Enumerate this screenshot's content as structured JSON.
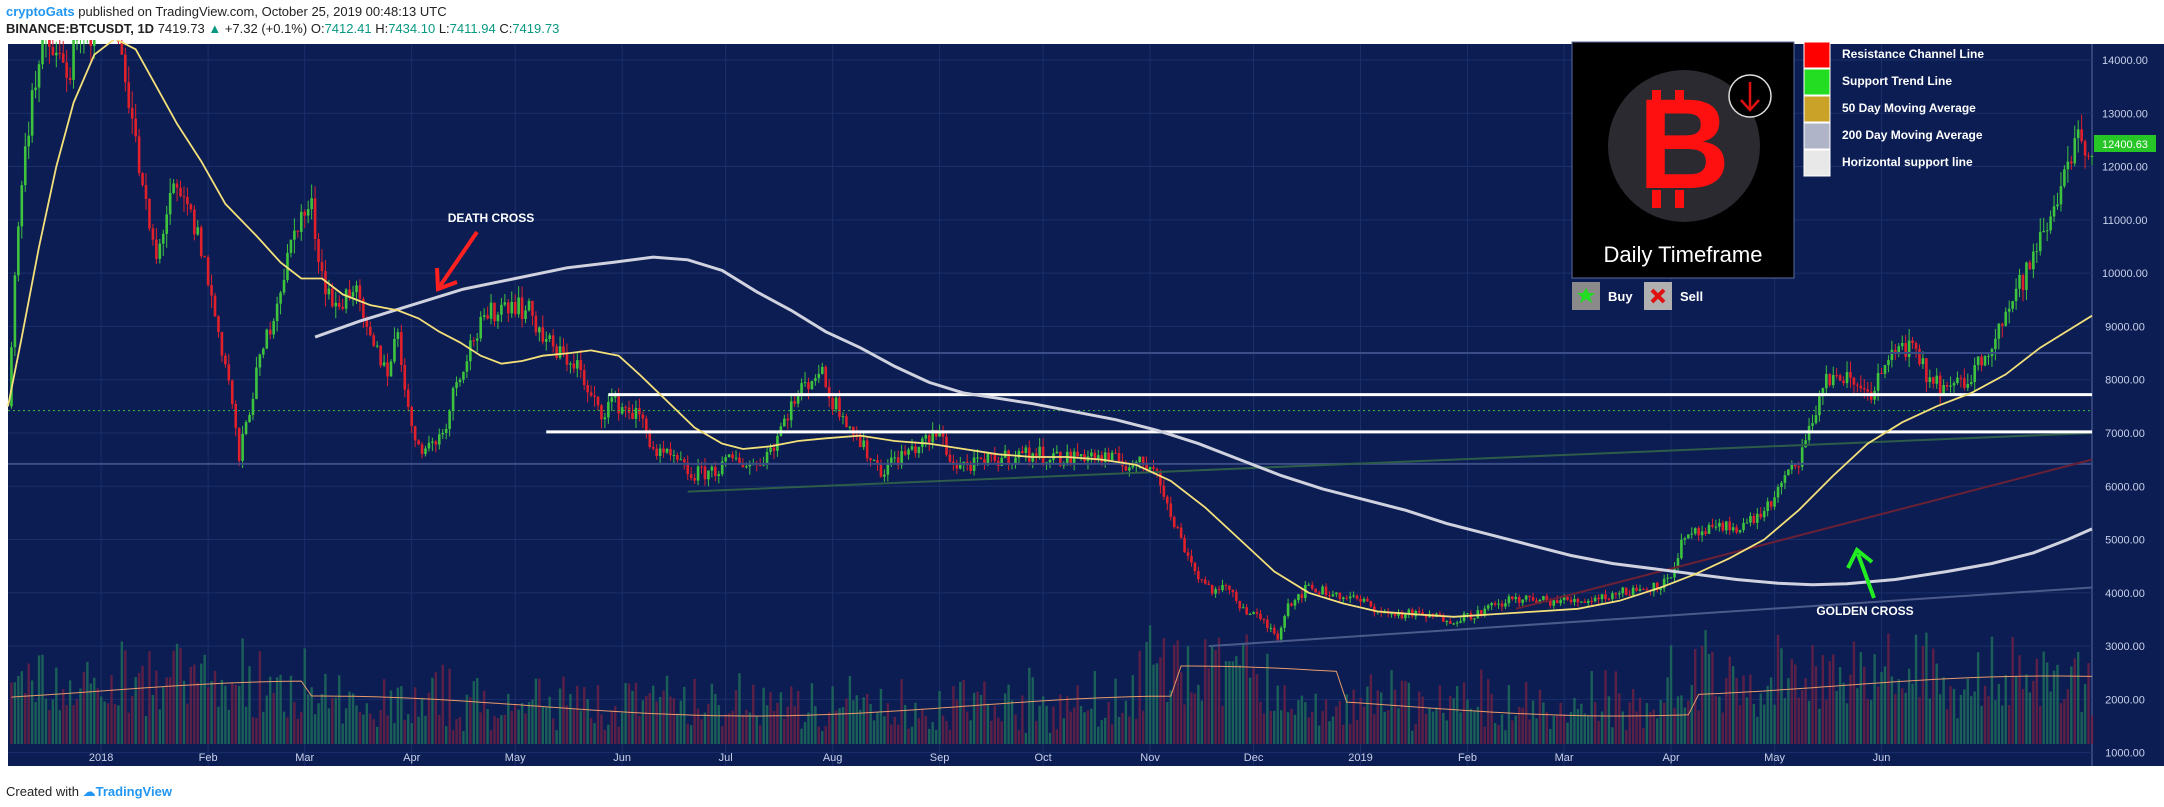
{
  "header": {
    "author": "cryptoGats",
    "published_text": "published on TradingView.com, October 25, 2019 00:48:13 UTC",
    "symbol": "BINANCE:BTCUSDT, 1D",
    "last_price": "7419.73",
    "change": "+7.32 (+0.1%)",
    "open_label": "O:",
    "open": "7412.41",
    "high_label": "H:",
    "high": "7434.10",
    "low_label": "L:",
    "low": "7411.94",
    "close_label": "C:",
    "close": "7419.73"
  },
  "footer": {
    "created_with": "Created with",
    "brand": "TradingView"
  },
  "legend": {
    "items": [
      {
        "label": "Resistance Channel Line",
        "color": "#ff0000"
      },
      {
        "label": "Support Trend Line",
        "color": "#22dd22"
      },
      {
        "label": "50 Day Moving Average",
        "color": "#c9a227"
      },
      {
        "label": "200 Day Moving Average",
        "color": "#b0b4c8"
      },
      {
        "label": "Horizontal support line",
        "color": "#e8e8e8"
      }
    ],
    "panel_title": "Daily Timeframe",
    "buy_label": "Buy",
    "sell_label": "Sell",
    "btc_symbol": "B"
  },
  "annotations": {
    "death_cross": "DEATH CROSS",
    "golden_cross": "GOLDEN CROSS"
  },
  "price_badge": "12400.63",
  "colors": {
    "background": "#0b1d52",
    "up": "#3ec33e",
    "down": "#e0202b",
    "ma50": "#f4e07a",
    "ma200": "#d0d2df",
    "support_line": "#ffffff",
    "badge": "#26c626"
  },
  "chart_data": {
    "type": "candlestick",
    "ylim": [
      750,
      14300
    ],
    "y_ticks": [
      1000,
      2000,
      3000,
      4000,
      5000,
      6000,
      7000,
      8000,
      9000,
      10000,
      11000,
      12000,
      13000,
      14000
    ],
    "y_tick_labels": [
      "1000.00",
      "2000.00",
      "3000.00",
      "4000.00",
      "5000.00",
      "6000.00",
      "7000.00",
      "8000.00",
      "9000.00",
      "10000.00",
      "11000.00",
      "12000.00",
      "13000.00",
      "14000.00"
    ],
    "x_tick_labels": [
      "2018",
      "Feb",
      "Mar",
      "Apr",
      "May",
      "Jun",
      "Jul",
      "Aug",
      "Sep",
      "Oct",
      "Nov",
      "Dec",
      "2019",
      "Feb",
      "Mar",
      "Apr",
      "May",
      "Jun"
    ],
    "x_ticks_days": [
      0,
      31,
      59,
      90,
      120,
      151,
      181,
      212,
      243,
      273,
      304,
      334,
      365,
      396,
      424,
      455,
      485,
      516
    ],
    "x_range_days": [
      -27,
      577
    ],
    "price_path": [
      [
        -27,
        7500
      ],
      [
        -24,
        11000
      ],
      [
        -20,
        13500
      ],
      [
        -16,
        14300
      ],
      [
        -10,
        13800
      ],
      [
        -4,
        14500
      ],
      [
        3,
        15000
      ],
      [
        7,
        13800
      ],
      [
        12,
        11500
      ],
      [
        16,
        10200
      ],
      [
        20,
        11500
      ],
      [
        25,
        11200
      ],
      [
        29,
        10500
      ],
      [
        33,
        9200
      ],
      [
        37,
        8000
      ],
      [
        40,
        6500
      ],
      [
        44,
        7800
      ],
      [
        48,
        8800
      ],
      [
        53,
        10000
      ],
      [
        57,
        11000
      ],
      [
        61,
        11200
      ],
      [
        64,
        10000
      ],
      [
        68,
        9300
      ],
      [
        73,
        9800
      ],
      [
        77,
        8800
      ],
      [
        83,
        8200
      ],
      [
        86,
        8900
      ],
      [
        90,
        7000
      ],
      [
        94,
        6700
      ],
      [
        99,
        7000
      ],
      [
        103,
        8000
      ],
      [
        108,
        8800
      ],
      [
        114,
        9300
      ],
      [
        119,
        9500
      ],
      [
        125,
        9200
      ],
      [
        128,
        8800
      ],
      [
        132,
        8500
      ],
      [
        138,
        8300
      ],
      [
        141,
        7700
      ],
      [
        145,
        7400
      ],
      [
        148,
        7600
      ],
      [
        151,
        7500
      ],
      [
        156,
        7300
      ],
      [
        161,
        6600
      ],
      [
        166,
        6500
      ],
      [
        171,
        6200
      ],
      [
        178,
        6300
      ],
      [
        183,
        6500
      ],
      [
        190,
        6400
      ],
      [
        195,
        6800
      ],
      [
        199,
        7400
      ],
      [
        204,
        7900
      ],
      [
        208,
        8200
      ],
      [
        212,
        7600
      ],
      [
        215,
        7400
      ],
      [
        220,
        6800
      ],
      [
        226,
        6300
      ],
      [
        230,
        6500
      ],
      [
        238,
        6800
      ],
      [
        243,
        7000
      ],
      [
        247,
        6400
      ],
      [
        254,
        6400
      ],
      [
        259,
        6500
      ],
      [
        266,
        6600
      ],
      [
        273,
        6600
      ],
      [
        279,
        6500
      ],
      [
        285,
        6600
      ],
      [
        292,
        6500
      ],
      [
        300,
        6400
      ],
      [
        306,
        6400
      ],
      [
        309,
        5600
      ],
      [
        313,
        5000
      ],
      [
        318,
        4300
      ],
      [
        323,
        4000
      ],
      [
        327,
        4100
      ],
      [
        331,
        3700
      ],
      [
        336,
        3500
      ],
      [
        341,
        3200
      ],
      [
        344,
        3800
      ],
      [
        350,
        4100
      ],
      [
        356,
        4000
      ],
      [
        362,
        3900
      ],
      [
        367,
        3800
      ],
      [
        372,
        3600
      ],
      [
        380,
        3600
      ],
      [
        386,
        3550
      ],
      [
        392,
        3500
      ],
      [
        398,
        3600
      ],
      [
        404,
        3750
      ],
      [
        410,
        3900
      ],
      [
        415,
        3850
      ],
      [
        422,
        3850
      ],
      [
        428,
        3850
      ],
      [
        433,
        3900
      ],
      [
        440,
        4000
      ],
      [
        448,
        4100
      ],
      [
        454,
        4200
      ],
      [
        458,
        4900
      ],
      [
        462,
        5100
      ],
      [
        470,
        5200
      ],
      [
        477,
        5300
      ],
      [
        483,
        5600
      ],
      [
        487,
        6000
      ],
      [
        492,
        6500
      ],
      [
        495,
        7000
      ],
      [
        499,
        7900
      ],
      [
        503,
        8100
      ],
      [
        508,
        7900
      ],
      [
        513,
        7800
      ],
      [
        517,
        8200
      ],
      [
        522,
        8700
      ],
      [
        525,
        8500
      ],
      [
        530,
        8000
      ],
      [
        536,
        7800
      ],
      [
        541,
        8000
      ],
      [
        546,
        8500
      ],
      [
        550,
        9000
      ],
      [
        554,
        9500
      ],
      [
        558,
        10000
      ],
      [
        562,
        10600
      ],
      [
        566,
        11200
      ],
      [
        569,
        12000
      ],
      [
        572,
        12500
      ],
      [
        575,
        12400
      ]
    ],
    "ma50_path": [
      [
        -27,
        7500
      ],
      [
        -23,
        8800
      ],
      [
        -18,
        10500
      ],
      [
        -13,
        12000
      ],
      [
        -8,
        13200
      ],
      [
        -2,
        14100
      ],
      [
        4,
        14400
      ],
      [
        10,
        14200
      ],
      [
        16,
        13500
      ],
      [
        22,
        12800
      ],
      [
        29,
        12100
      ],
      [
        36,
        11300
      ],
      [
        45,
        10700
      ],
      [
        52,
        10200
      ],
      [
        58,
        9900
      ],
      [
        64,
        9900
      ],
      [
        70,
        9600
      ],
      [
        78,
        9400
      ],
      [
        86,
        9300
      ],
      [
        92,
        9150
      ],
      [
        98,
        8900
      ],
      [
        104,
        8700
      ],
      [
        110,
        8450
      ],
      [
        116,
        8300
      ],
      [
        122,
        8350
      ],
      [
        128,
        8450
      ],
      [
        136,
        8500
      ],
      [
        142,
        8550
      ],
      [
        150,
        8450
      ],
      [
        156,
        8100
      ],
      [
        164,
        7600
      ],
      [
        172,
        7100
      ],
      [
        180,
        6800
      ],
      [
        186,
        6700
      ],
      [
        194,
        6750
      ],
      [
        202,
        6850
      ],
      [
        210,
        6900
      ],
      [
        220,
        6950
      ],
      [
        230,
        6850
      ],
      [
        240,
        6800
      ],
      [
        250,
        6700
      ],
      [
        260,
        6600
      ],
      [
        270,
        6550
      ],
      [
        280,
        6550
      ],
      [
        290,
        6500
      ],
      [
        300,
        6400
      ],
      [
        310,
        6100
      ],
      [
        320,
        5600
      ],
      [
        330,
        5000
      ],
      [
        340,
        4400
      ],
      [
        350,
        4000
      ],
      [
        360,
        3800
      ],
      [
        370,
        3650
      ],
      [
        380,
        3600
      ],
      [
        392,
        3550
      ],
      [
        404,
        3600
      ],
      [
        416,
        3650
      ],
      [
        428,
        3700
      ],
      [
        440,
        3850
      ],
      [
        452,
        4100
      ],
      [
        462,
        4350
      ],
      [
        472,
        4650
      ],
      [
        482,
        5000
      ],
      [
        492,
        5550
      ],
      [
        502,
        6200
      ],
      [
        512,
        6800
      ],
      [
        522,
        7200
      ],
      [
        532,
        7500
      ],
      [
        542,
        7750
      ],
      [
        552,
        8100
      ],
      [
        562,
        8600
      ],
      [
        572,
        9000
      ],
      [
        577,
        9200
      ]
    ],
    "ma200_path": [
      [
        62,
        8800
      ],
      [
        75,
        9100
      ],
      [
        90,
        9400
      ],
      [
        105,
        9700
      ],
      [
        120,
        9900
      ],
      [
        135,
        10100
      ],
      [
        148,
        10200
      ],
      [
        160,
        10300
      ],
      [
        170,
        10250
      ],
      [
        180,
        10050
      ],
      [
        190,
        9650
      ],
      [
        200,
        9300
      ],
      [
        210,
        8900
      ],
      [
        220,
        8600
      ],
      [
        230,
        8250
      ],
      [
        240,
        7950
      ],
      [
        250,
        7750
      ],
      [
        260,
        7650
      ],
      [
        270,
        7550
      ],
      [
        282,
        7400
      ],
      [
        294,
        7250
      ],
      [
        306,
        7050
      ],
      [
        318,
        6800
      ],
      [
        330,
        6500
      ],
      [
        342,
        6200
      ],
      [
        354,
        5950
      ],
      [
        366,
        5750
      ],
      [
        378,
        5550
      ],
      [
        390,
        5300
      ],
      [
        402,
        5100
      ],
      [
        414,
        4900
      ],
      [
        426,
        4700
      ],
      [
        438,
        4550
      ],
      [
        450,
        4450
      ],
      [
        462,
        4350
      ],
      [
        474,
        4250
      ],
      [
        486,
        4180
      ],
      [
        496,
        4150
      ],
      [
        506,
        4170
      ],
      [
        520,
        4250
      ],
      [
        535,
        4400
      ],
      [
        548,
        4550
      ],
      [
        560,
        4750
      ],
      [
        570,
        5000
      ],
      [
        577,
        5200
      ]
    ],
    "support_lines": [
      7720,
      7020
    ],
    "support_line_ranges": [
      [
        147,
        577
      ],
      [
        129,
        577
      ]
    ],
    "volume_scale_max": 1.0,
    "series": [
      {
        "name": "BTCUSDT"
      },
      {
        "name": "50 Day Moving Average"
      },
      {
        "name": "200 Day Moving Average"
      }
    ]
  }
}
